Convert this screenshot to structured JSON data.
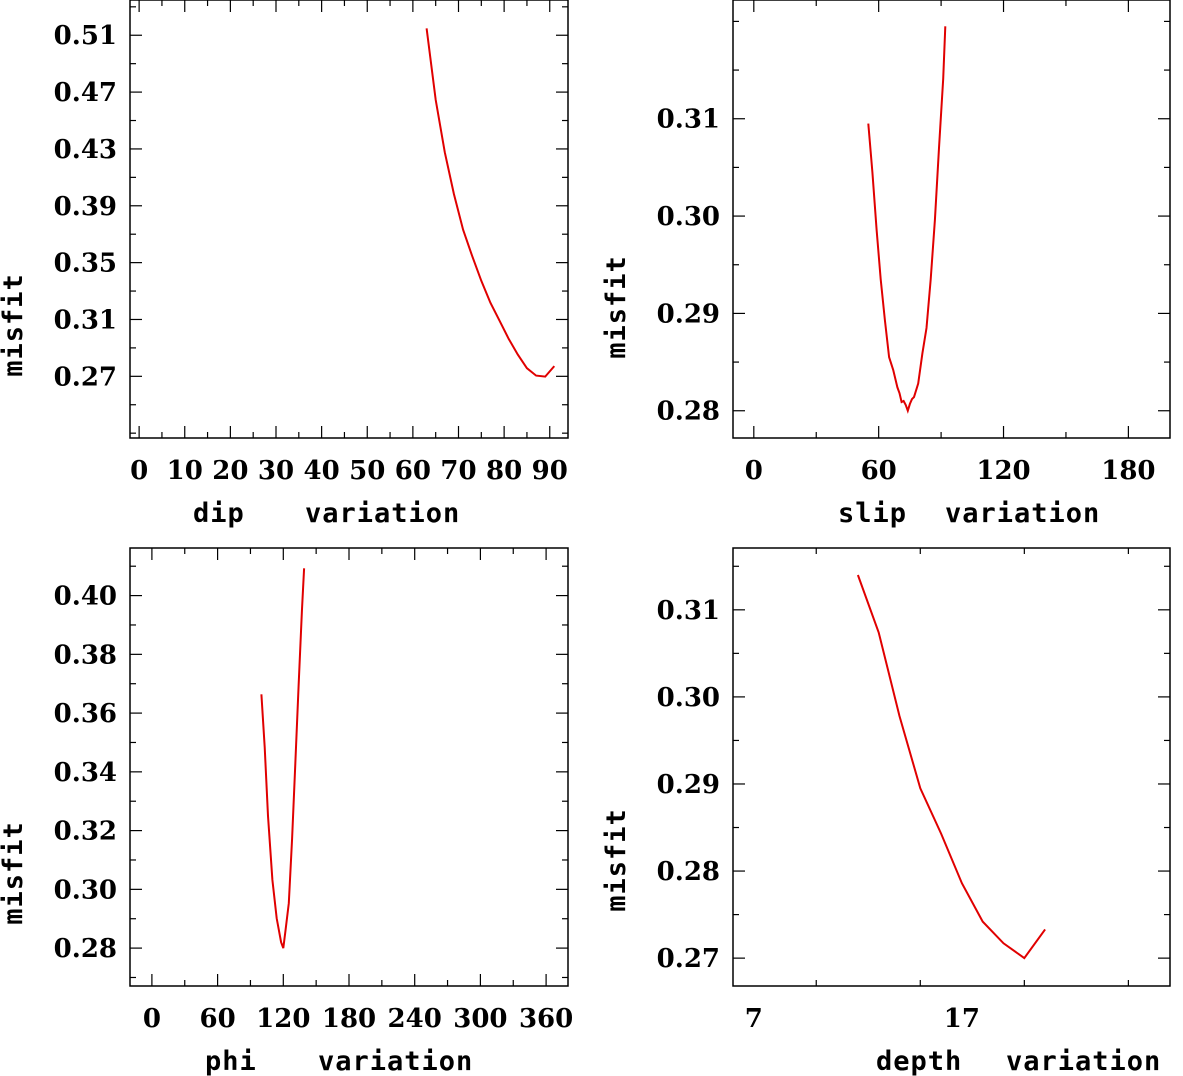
{
  "chart_data": [
    {
      "type": "line",
      "xlabel_parts": [
        "dip",
        "variation"
      ],
      "ylabel": "misfit",
      "xlim": [
        -2,
        94
      ],
      "ylim": [
        0.2266,
        0.5348
      ],
      "x_ticks": [
        0,
        10,
        20,
        30,
        40,
        50,
        60,
        70,
        80,
        90
      ],
      "x_tick_labels": [
        "0",
        "10",
        "20",
        "30",
        "40",
        "50",
        "60",
        "70",
        "80",
        "90"
      ],
      "y_ticks": [
        0.27,
        0.31,
        0.35,
        0.39,
        0.43,
        0.47,
        0.51
      ],
      "y_tick_labels": [
        "0.27",
        "0.31",
        "0.35",
        "0.39",
        "0.43",
        "0.47",
        "0.51"
      ],
      "x": [
        63,
        65,
        67,
        69,
        71,
        73,
        75,
        77,
        79,
        81,
        83,
        85,
        87,
        89,
        91
      ],
      "y": [
        0.5148,
        0.4645,
        0.4276,
        0.3983,
        0.3732,
        0.3546,
        0.3372,
        0.3218,
        0.3091,
        0.2963,
        0.2853,
        0.2757,
        0.2705,
        0.2698,
        0.2772
      ]
    },
    {
      "type": "line",
      "xlabel_parts": [
        "slip",
        "variation"
      ],
      "ylabel": "misfit",
      "xlim": [
        -10,
        200
      ],
      "ylim": [
        0.2772,
        0.3222
      ],
      "x_ticks": [
        0,
        60,
        120,
        180
      ],
      "x_tick_labels": [
        "0",
        "60",
        "120",
        "180"
      ],
      "y_ticks": [
        0.28,
        0.29,
        0.3,
        0.31
      ],
      "y_tick_labels": [
        "0.28",
        "0.29",
        "0.30",
        "0.31"
      ],
      "x": [
        55,
        57,
        59,
        61,
        63,
        65,
        67,
        69,
        70,
        71,
        72,
        73,
        74,
        75,
        76,
        77,
        79,
        81,
        83,
        85,
        87,
        89,
        91,
        92
      ],
      "y": [
        0.3095,
        0.3045,
        0.2986,
        0.2935,
        0.2893,
        0.2855,
        0.2842,
        0.2824,
        0.2818,
        0.2809,
        0.281,
        0.2806,
        0.28,
        0.2807,
        0.2812,
        0.2814,
        0.2828,
        0.2859,
        0.2885,
        0.2935,
        0.2996,
        0.307,
        0.3141,
        0.3195
      ]
    },
    {
      "type": "line",
      "xlabel_parts": [
        "phi",
        "variation"
      ],
      "ylabel": "misfit",
      "xlim": [
        -20,
        380
      ],
      "ylim": [
        0.2671,
        0.4162
      ],
      "x_ticks": [
        0,
        60,
        120,
        180,
        240,
        300,
        360
      ],
      "x_tick_labels": [
        "0",
        "60",
        "120",
        "180",
        "240",
        "300",
        "360"
      ],
      "y_ticks": [
        0.28,
        0.3,
        0.32,
        0.34,
        0.36,
        0.38,
        0.4
      ],
      "y_tick_labels": [
        "0.28",
        "0.30",
        "0.32",
        "0.34",
        "0.36",
        "0.38",
        "0.40"
      ],
      "x": [
        100,
        103,
        106,
        110,
        114,
        118,
        120,
        122,
        125,
        128,
        131,
        134,
        137,
        139
      ],
      "y": [
        0.3664,
        0.3484,
        0.325,
        0.3032,
        0.2901,
        0.282,
        0.28,
        0.286,
        0.2953,
        0.3173,
        0.3427,
        0.3693,
        0.3947,
        0.4093
      ]
    },
    {
      "type": "line",
      "xlabel_parts": [
        "depth",
        "variation"
      ],
      "ylabel": "misfit",
      "xlim": [
        6,
        27
      ],
      "ylim": [
        0.2668,
        0.3171
      ],
      "x_ticks": [
        7,
        17
      ],
      "x_tick_labels": [
        "7",
        "17"
      ],
      "y_ticks": [
        0.27,
        0.28,
        0.29,
        0.3,
        0.31
      ],
      "y_tick_labels": [
        "0.27",
        "0.28",
        "0.29",
        "0.30",
        "0.31"
      ],
      "x": [
        12,
        13,
        14,
        15,
        16,
        17,
        18,
        19,
        20,
        21
      ],
      "y": [
        0.314,
        0.3074,
        0.2978,
        0.2895,
        0.2843,
        0.2786,
        0.2742,
        0.2717,
        0.27,
        0.2733
      ]
    }
  ]
}
